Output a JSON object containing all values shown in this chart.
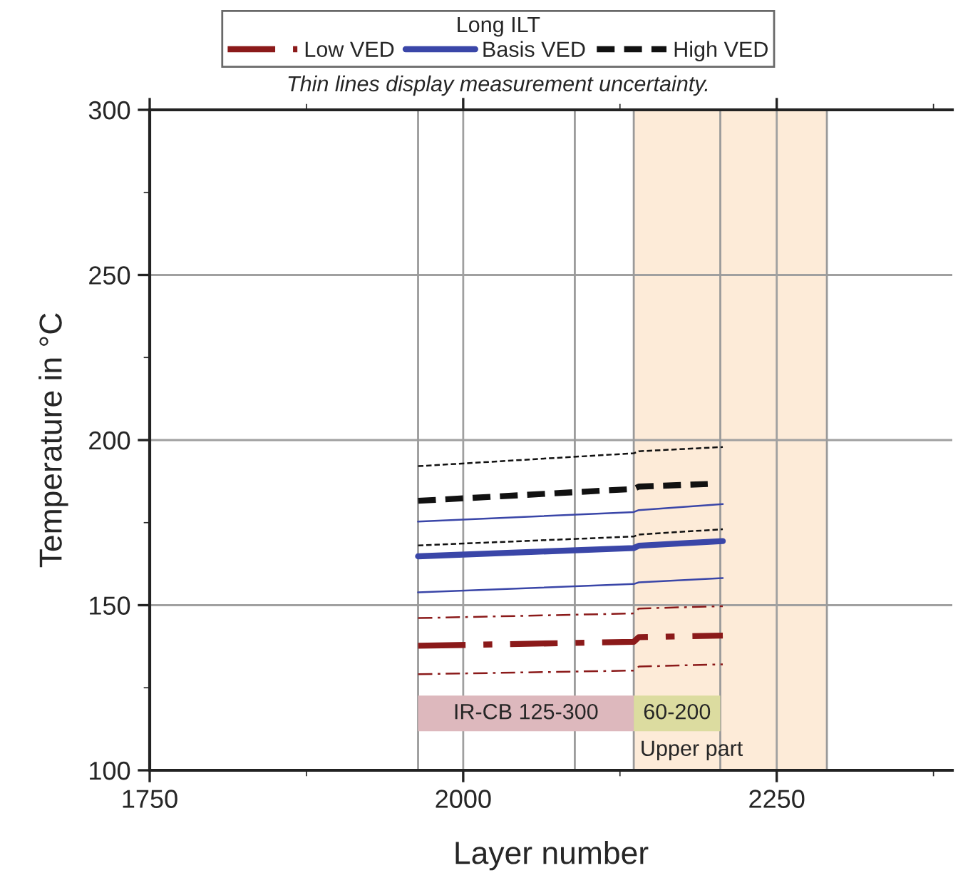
{
  "chart_data": {
    "type": "line",
    "xlabel": "Layer number",
    "ylabel": "Temperature in °C",
    "legend_title": "Long ILT",
    "legend": "top",
    "annotations": [
      "Thin lines display measurement uncertainty."
    ],
    "xlim": [
      1750,
      2390
    ],
    "xticks": [
      1750,
      2000,
      2250
    ],
    "ylim": [
      100,
      300
    ],
    "yticks": [
      100,
      150,
      200,
      250,
      300
    ],
    "grid": true,
    "series": [
      {
        "name": "Low VED",
        "color": "#8b1a1a",
        "line_style": "dashdot",
        "x": [
          1964,
          2136,
          2140,
          2207
        ],
        "values": [
          137.7,
          138.9,
          140.3,
          140.8
        ]
      },
      {
        "color": "#8b1a1a",
        "line_style": "dashdot",
        "x": [
          1964,
          2136,
          2140,
          2207
        ],
        "values": [
          146.1,
          147.5,
          149.0,
          149.7
        ]
      },
      {
        "color": "#8b1a1a",
        "line_style": "dashdot",
        "x": [
          1964,
          2136,
          2140,
          2207
        ],
        "values": [
          129.1,
          130.2,
          131.4,
          132.1
        ]
      },
      {
        "name": "Basis VED",
        "color": "#3a46a8",
        "line_style": "solid",
        "x": [
          1964,
          2136,
          2140,
          2207
        ],
        "values": [
          164.8,
          167.3,
          168.0,
          169.4
        ]
      },
      {
        "color": "#3a46a8",
        "line_style": "solid",
        "x": [
          1964,
          2136,
          2140,
          2207
        ],
        "values": [
          175.3,
          178.2,
          178.8,
          180.6
        ]
      },
      {
        "color": "#3a46a8",
        "line_style": "solid",
        "x": [
          1964,
          2136,
          2140,
          2207
        ],
        "values": [
          153.9,
          156.4,
          156.9,
          158.2
        ]
      },
      {
        "name": "High VED",
        "color": "#111111",
        "line_style": "dashed",
        "x": [
          1964,
          2136,
          2140,
          2195
        ],
        "values": [
          181.6,
          185.2,
          185.9,
          186.7
        ]
      },
      {
        "color": "#111111",
        "line_style": "dashed",
        "x": [
          1964,
          2136,
          2140,
          2207
        ],
        "values": [
          192.1,
          196.0,
          196.6,
          197.9
        ]
      },
      {
        "color": "#111111",
        "line_style": "dashed",
        "x": [
          1964,
          2136,
          2140,
          2207
        ],
        "values": [
          168.1,
          170.8,
          171.4,
          173.0
        ]
      }
    ],
    "ref_lines": [
      {
        "axis": "x",
        "value": 1964,
        "color": "#9a9a9a"
      },
      {
        "axis": "x",
        "value": 2089,
        "color": "#9a9a9a"
      },
      {
        "axis": "x",
        "value": 2136,
        "color": "#9a9a9a"
      },
      {
        "axis": "x",
        "value": 2205,
        "color": "#9a9a9a"
      },
      {
        "axis": "x",
        "value": 2290,
        "color": "#9a9a9a"
      }
    ],
    "bands": [
      {
        "axis": "x",
        "from": 2136,
        "to": 2290,
        "label": "Upper part",
        "color": "#fdebd8"
      },
      {
        "axis": "x",
        "from": 1964,
        "to": 2136,
        "label": "IR-CB 125-300",
        "color": "#ddb8bd"
      },
      {
        "axis": "x",
        "from": 2136,
        "to": 2205,
        "label": "60-200",
        "color": "#dcdca0"
      }
    ]
  }
}
